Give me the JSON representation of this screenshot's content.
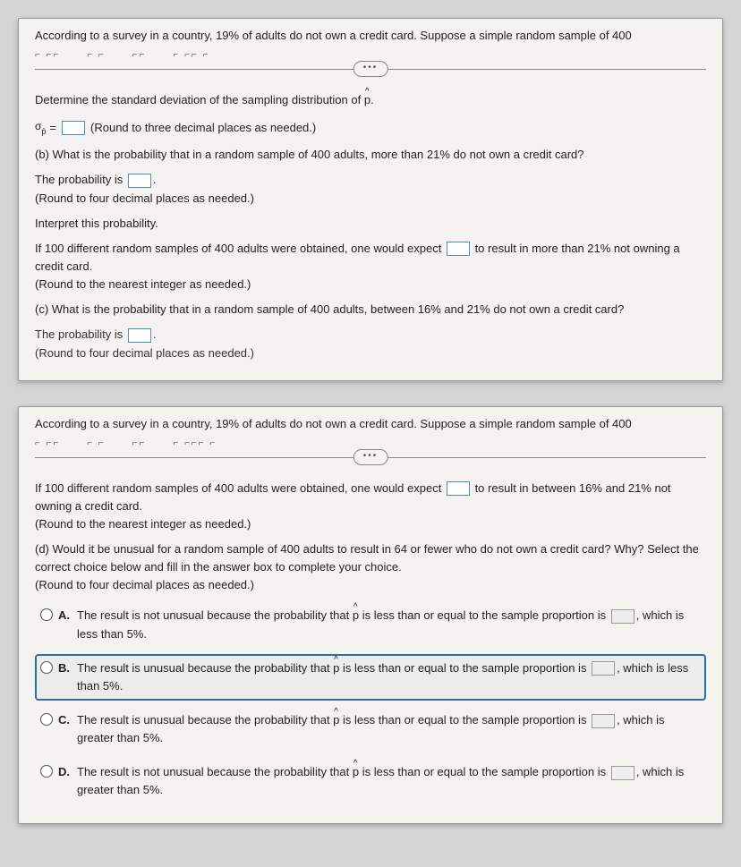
{
  "colors": {
    "panel_bg": "#f5f3ef",
    "page_bg": "#d5d5d5",
    "input_border": "#4a90c2",
    "selected_border": "#2e6ca8"
  },
  "panel1": {
    "header": "According to a survey in a country, 19% of adults do not own a credit card. Suppose a simple random sample of 400",
    "pill": "•••",
    "std_dev_prompt": "Determine the standard deviation of the sampling distribution of ",
    "phat": "p",
    "sigma_label": "σ",
    "sigma_sub": "p̂",
    "equals": "=",
    "round3": "(Round to three decimal places as needed.)",
    "part_b": "(b) What is the probability that in a random sample of 400 adults, more than 21% do not own a credit card?",
    "prob_is": "The probability is ",
    "period": ".",
    "round4": "(Round to four decimal places as needed.)",
    "interp": "Interpret this probability.",
    "if100_a": "If 100 different random samples of 400 adults were obtained, one would expect ",
    "if100_b": " to result in more than 21% not owning a credit card.",
    "round_int": "(Round to the nearest integer as needed.)",
    "part_c": "(c) What is the probability that in a random sample of 400 adults, between 16% and 21% do not own a credit card?",
    "prob_is2": "The probability is ",
    "round4b": "(Round to four decimal places as needed.)"
  },
  "panel2": {
    "header": "According to a survey in a country, 19% of adults do not own a credit card. Suppose a simple random sample of 400",
    "pill": "•••",
    "if100_a": "If 100 different random samples of 400 adults were obtained, one would expect ",
    "if100_b": " to result in between 16% and 21% not owning a credit card.",
    "round_int": "(Round to the nearest integer as needed.)",
    "part_d": "(d) Would it be unusual for a random sample of 400 adults to result in 64 or fewer who do not own a credit card? Why? Select the correct choice below and fill in the answer box to complete your choice.",
    "round4": "(Round to four decimal places as needed.)",
    "options": {
      "A": {
        "letter": "A.",
        "text_a": "The result is not unusual because the probability that ",
        "text_b": " is less than or equal to the sample proportion is ",
        "text_c": ", which is less than 5%."
      },
      "B": {
        "letter": "B.",
        "text_a": "The result is unusual because the probability that ",
        "text_b": " is less than or equal to the sample proportion is ",
        "text_c": ", which is less than 5%."
      },
      "C": {
        "letter": "C.",
        "text_a": "The result is unusual because the probability that ",
        "text_b": " is less than or equal to the sample proportion is ",
        "text_c": ", which is greater than 5%."
      },
      "D": {
        "letter": "D.",
        "text_a": "The result is not unusual because the probability that ",
        "text_b": " is less than or equal to the sample proportion is ",
        "text_c": ", which is greater than 5%."
      }
    },
    "selected": "B"
  }
}
